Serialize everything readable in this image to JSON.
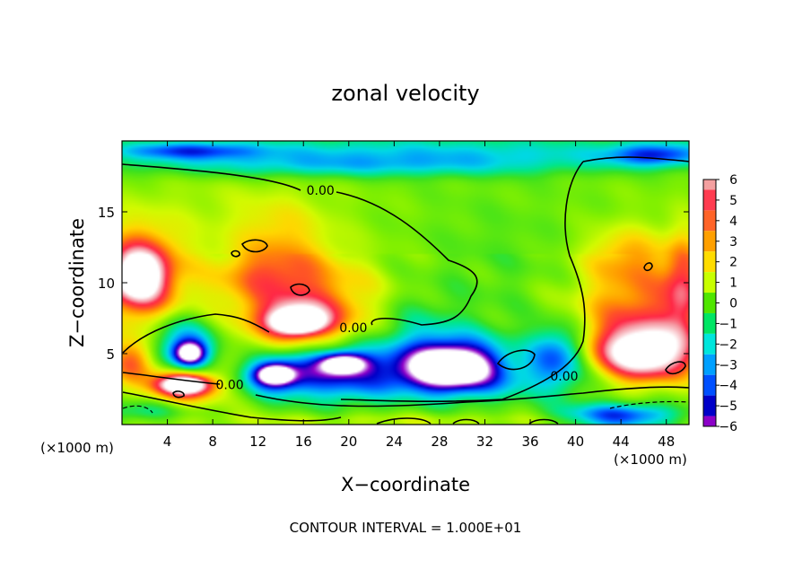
{
  "chart_data": {
    "type": "heatmap",
    "title": "zonal velocity",
    "xlabel": "X−coordinate",
    "ylabel": "Z−coordinate",
    "x_unit_left": "(×1000 m)",
    "x_unit_right": "(×1000 m)",
    "footnote": "CONTOUR INTERVAL = 1.000E+01",
    "xlim": [
      0,
      50
    ],
    "ylim": [
      0,
      20
    ],
    "x_ticks": [
      4,
      8,
      12,
      16,
      20,
      24,
      28,
      32,
      36,
      40,
      44,
      48
    ],
    "y_ticks": [
      5,
      10,
      15
    ],
    "colorbar": {
      "min": -6,
      "max": 6,
      "ticks": [
        "6",
        "5",
        "4",
        "3",
        "2",
        "1",
        "0",
        "−1",
        "−2",
        "−3",
        "−4",
        "−5",
        "−6"
      ],
      "colors": [
        "#f4a0a0",
        "#ff3c50",
        "#ff6428",
        "#ffa000",
        "#ffdc00",
        "#c8ff00",
        "#50e600",
        "#00e664",
        "#00e6dc",
        "#00a0ff",
        "#0050ff",
        "#0000c8",
        "#8c00c8"
      ]
    },
    "contour_labels": [
      {
        "text": "0.00",
        "x": 17.5,
        "z": 16.4
      },
      {
        "text": "0.00",
        "x": 20.4,
        "z": 6.7
      },
      {
        "text": "0.00",
        "x": 9.5,
        "z": 2.7
      },
      {
        "text": "0.00",
        "x": 39.0,
        "z": 3.3
      }
    ],
    "blobs": [
      {
        "x": 1.5,
        "z": 10.5,
        "rx": 4.0,
        "rz": 3.5,
        "v": 4.5
      },
      {
        "x": 1.5,
        "z": 10.5,
        "rx": 2.2,
        "rz": 1.8,
        "v": 7.5
      },
      {
        "x": 16.5,
        "z": 8.0,
        "rx": 7.0,
        "rz": 3.5,
        "v": 3.5
      },
      {
        "x": 15.5,
        "z": 7.5,
        "rx": 3.0,
        "rz": 1.2,
        "v": 5.5
      },
      {
        "x": 15.5,
        "z": 7.2,
        "rx": 2.0,
        "rz": 0.7,
        "v": 7.5
      },
      {
        "x": 13.0,
        "z": 10.5,
        "rx": 5.0,
        "rz": 2.0,
        "v": 2.5
      },
      {
        "x": 14.0,
        "z": 13.5,
        "rx": 4.0,
        "rz": 2.5,
        "v": 1.5
      },
      {
        "x": 46.0,
        "z": 7.5,
        "rx": 6.0,
        "rz": 4.0,
        "v": 4.0
      },
      {
        "x": 46.0,
        "z": 5.0,
        "rx": 4.0,
        "rz": 1.8,
        "v": 8.0
      },
      {
        "x": 49.5,
        "z": 10.0,
        "rx": 1.5,
        "rz": 3.5,
        "v": 3.5
      },
      {
        "x": 44.5,
        "z": 12.0,
        "rx": 3.5,
        "rz": 2.0,
        "v": 2.0
      },
      {
        "x": 5.5,
        "z": 2.8,
        "rx": 3.5,
        "rz": 1.3,
        "v": 5.0
      },
      {
        "x": 5.5,
        "z": 2.8,
        "rx": 2.0,
        "rz": 0.6,
        "v": 8.0
      },
      {
        "x": 1.0,
        "z": 4.5,
        "rx": 2.0,
        "rz": 1.5,
        "v": 4.0
      },
      {
        "x": 29.0,
        "z": 4.5,
        "rx": 5.5,
        "rz": 2.0,
        "v": -5.5
      },
      {
        "x": 29.0,
        "z": 4.0,
        "rx": 3.5,
        "rz": 1.3,
        "v": -8.0
      },
      {
        "x": 19.0,
        "z": 3.8,
        "rx": 5.0,
        "rz": 2.0,
        "v": -5.0
      },
      {
        "x": 13.5,
        "z": 3.5,
        "rx": 3.0,
        "rz": 1.3,
        "v": -5.5
      },
      {
        "x": 13.5,
        "z": 3.5,
        "rx": 1.4,
        "rz": 0.6,
        "v": -8.0
      },
      {
        "x": 19.5,
        "z": 4.3,
        "rx": 2.0,
        "rz": 0.7,
        "v": -8.0
      },
      {
        "x": 5.5,
        "z": 5.5,
        "rx": 3.0,
        "rz": 2.0,
        "v": -4.5
      },
      {
        "x": 6.0,
        "z": 5.0,
        "rx": 1.3,
        "rz": 0.8,
        "v": -8.0
      },
      {
        "x": 38.5,
        "z": 5.0,
        "rx": 2.5,
        "rz": 2.0,
        "v": -4.5
      },
      {
        "x": 25.5,
        "z": 7.0,
        "rx": 4.0,
        "rz": 2.5,
        "v": -1.5
      },
      {
        "x": 30.0,
        "z": 3.0,
        "rx": 14.0,
        "rz": 1.5,
        "v": -2.0
      },
      {
        "x": 34.0,
        "z": 4.5,
        "rx": 2.5,
        "rz": 1.5,
        "v": 0.6
      },
      {
        "x": 25.0,
        "z": 19.2,
        "rx": 30.0,
        "rz": 1.2,
        "v": -2.8
      },
      {
        "x": 20.0,
        "z": 18.2,
        "rx": 18.0,
        "rz": 0.8,
        "v": -2.0
      },
      {
        "x": 6.0,
        "z": 19.3,
        "rx": 6.0,
        "rz": 0.6,
        "v": -3.5
      },
      {
        "x": 47.0,
        "z": 19.0,
        "rx": 4.0,
        "rz": 0.8,
        "v": -4.0
      },
      {
        "x": 44.0,
        "z": 0.6,
        "rx": 5.0,
        "rz": 0.9,
        "v": -5.5
      },
      {
        "x": 1.5,
        "z": 0.9,
        "rx": 4.0,
        "rz": 0.8,
        "v": -2.0
      },
      {
        "x": 25.0,
        "z": 0.3,
        "rx": 25.0,
        "rz": 0.5,
        "v": 0.9
      },
      {
        "x": 33.0,
        "z": 11.0,
        "rx": 8.0,
        "rz": 6.0,
        "v": -0.6
      },
      {
        "x": 10.0,
        "z": 15.0,
        "rx": 9.0,
        "rz": 3.0,
        "v": 0.6
      }
    ]
  }
}
